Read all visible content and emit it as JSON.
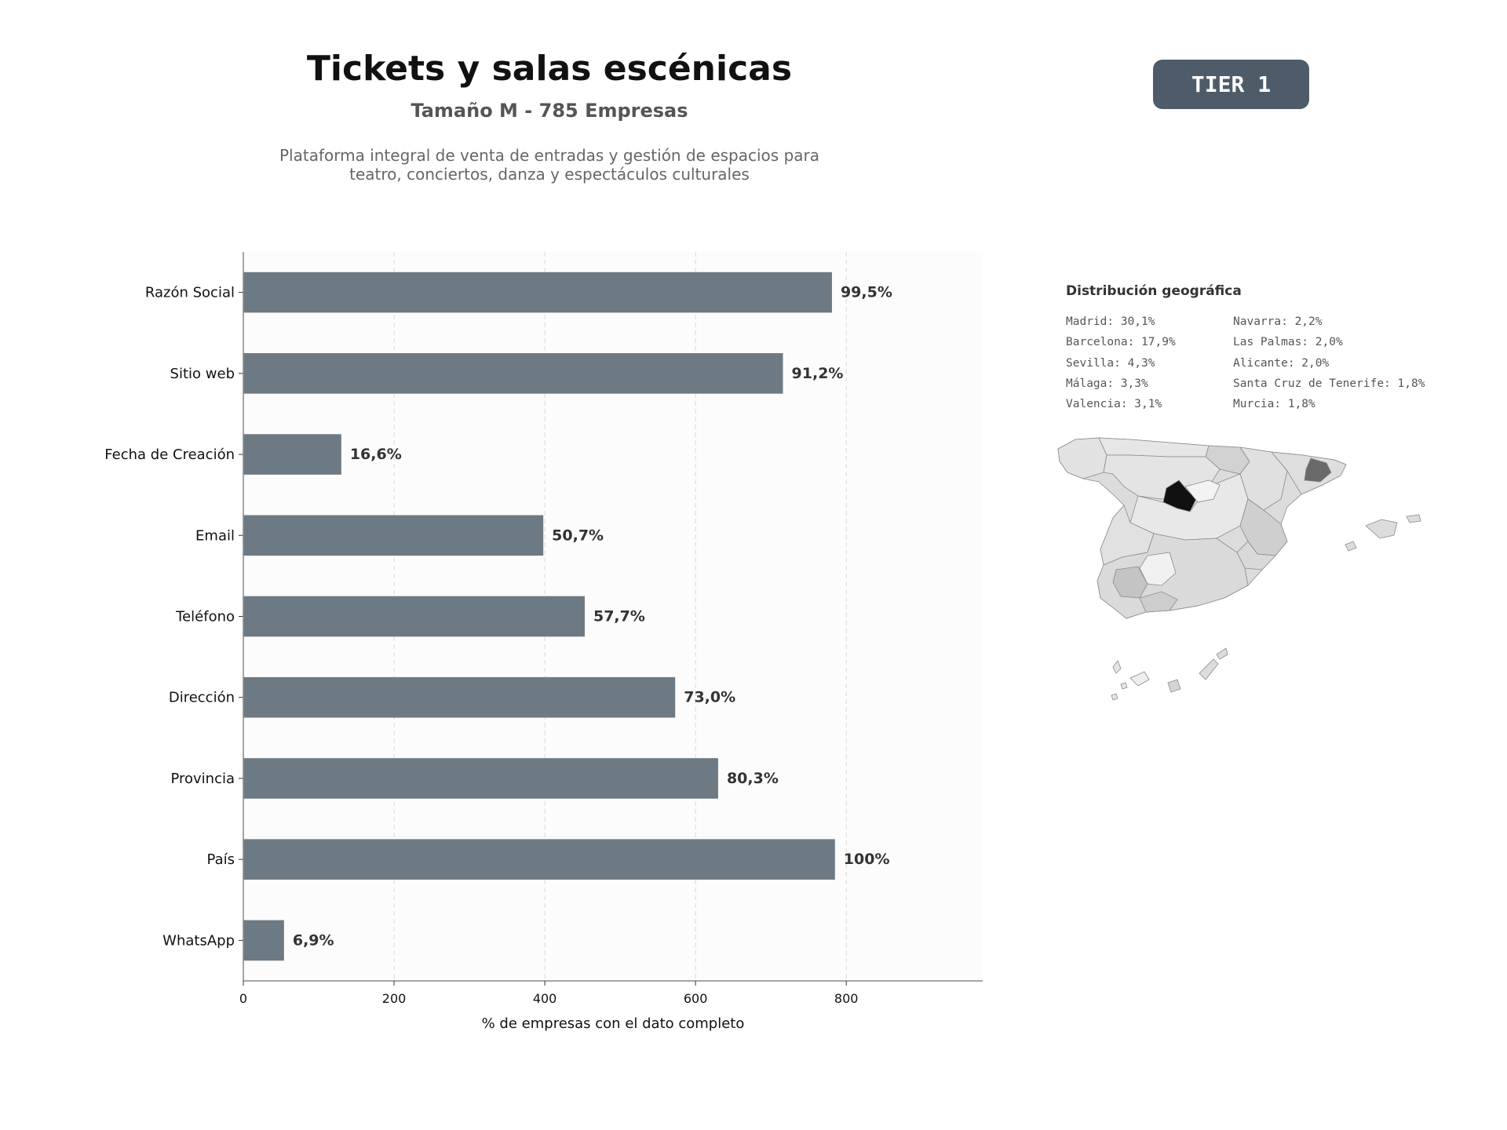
{
  "header": {
    "title": "Tickets y salas escénicas",
    "subtitle": "Tamaño M - 785 Empresas",
    "description_line1": "Plataforma integral de venta de entradas y gestión de espacios para",
    "description_line2": "teatro, conciertos, danza y espectáculos culturales",
    "badge": "TIER 1"
  },
  "chart_data": {
    "type": "bar",
    "orientation": "horizontal",
    "categories": [
      "Razón Social",
      "Sitio web",
      "Fecha de Creación",
      "Email",
      "Teléfono",
      "Dirección",
      "Provincia",
      "País",
      "WhatsApp"
    ],
    "values": [
      781,
      716,
      130,
      398,
      453,
      573,
      630,
      785,
      54
    ],
    "data_labels": [
      "99,5%",
      "91,2%",
      "16,6%",
      "50,7%",
      "57,7%",
      "73,0%",
      "80,3%",
      "100%",
      "6,9%"
    ],
    "xlabel": "% de empresas con el dato completo",
    "ylabel": "",
    "xlim": [
      0,
      981
    ],
    "xticks": [
      0,
      200,
      400,
      600,
      800
    ],
    "grid": "vertical dashed",
    "bar_color": "#6e7a83"
  },
  "geo": {
    "title": "Distribución geográfica",
    "col1": [
      "Madrid: 30,1%",
      "Barcelona: 17,9%",
      "Sevilla: 4,3%",
      "Málaga: 3,3%",
      "Valencia: 3,1%"
    ],
    "col2": [
      "Navarra: 2,2%",
      "Las Palmas: 2,0%",
      "Alicante: 2,0%",
      "Santa Cruz de Tenerife: 1,8%",
      "Murcia: 1,8%"
    ]
  }
}
